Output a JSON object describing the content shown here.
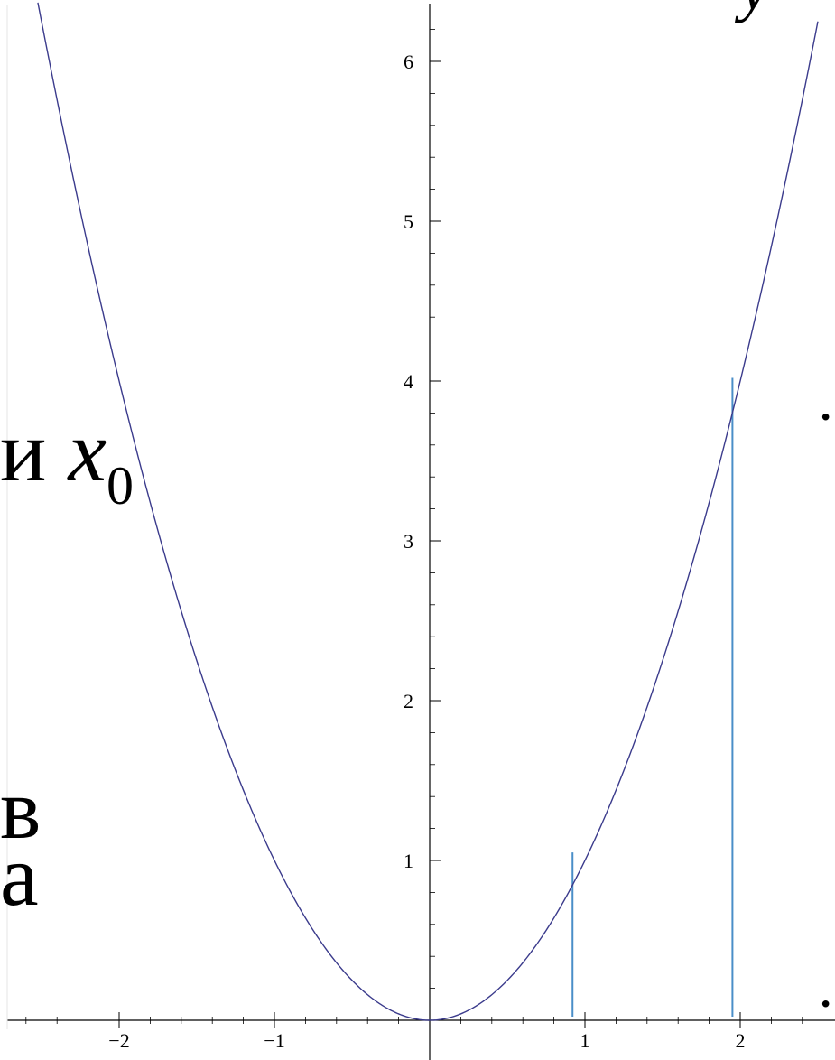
{
  "background_text": {
    "fragment_i": "и",
    "var_x": "x",
    "sub_0": "0",
    "fragment_v": "в",
    "fragment_a": "а",
    "dot_right_upper": "·",
    "dot_right_lower": "·",
    "corner_letter": "у"
  },
  "chart_data": {
    "type": "line",
    "title": "",
    "xlabel": "",
    "ylabel": "",
    "function": "y = x^2",
    "xlim": [
      -2.6,
      2.5
    ],
    "ylim": [
      0,
      6.4
    ],
    "x_ticks": [
      {
        "value": -2,
        "label": "−2"
      },
      {
        "value": -1,
        "label": "−1"
      },
      {
        "value": 1,
        "label": "1"
      },
      {
        "value": 2,
        "label": "2"
      }
    ],
    "y_ticks": [
      {
        "value": 1,
        "label": "1"
      },
      {
        "value": 2,
        "label": "2"
      },
      {
        "value": 3,
        "label": "3"
      },
      {
        "value": 4,
        "label": "4"
      },
      {
        "value": 5,
        "label": "5"
      },
      {
        "value": 6,
        "label": "6"
      }
    ],
    "vertical_segments": [
      {
        "x": 0.92,
        "y_from": 0,
        "y_to": 1.05
      },
      {
        "x": 1.95,
        "y_from": 0,
        "y_to": 4.02
      }
    ],
    "curve_color": "#3b3b8c",
    "segment_color": "#4a8ec8",
    "axis_color": "#000000"
  }
}
